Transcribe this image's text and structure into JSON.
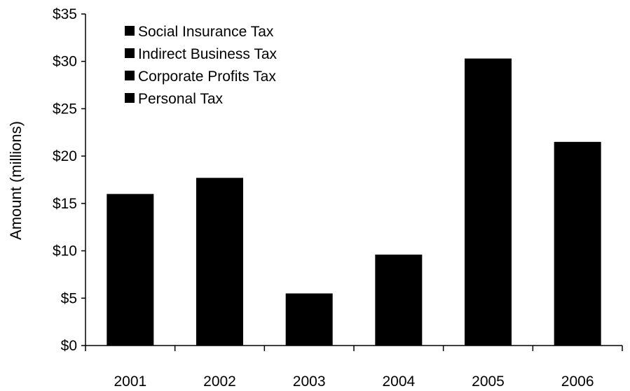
{
  "chart_data": {
    "type": "bar",
    "stacked": true,
    "categories": [
      "2001",
      "2002",
      "2003",
      "2004",
      "2005",
      "2006"
    ],
    "series": [
      {
        "name": "Social Insurance Tax",
        "color": "#000000"
      },
      {
        "name": "Indirect Business Tax",
        "color": "#000000"
      },
      {
        "name": "Corporate Profits Tax",
        "color": "#000000"
      },
      {
        "name": "Personal Tax",
        "color": "#000000"
      }
    ],
    "totals": [
      16.0,
      17.7,
      5.5,
      9.6,
      30.3,
      21.5
    ],
    "ylabel": "Amount (millions)",
    "ylim": [
      0,
      35
    ],
    "yticks": [
      0,
      5,
      10,
      15,
      20,
      25,
      30,
      35
    ],
    "ytick_labels": [
      "$0",
      "$5",
      "$10",
      "$15",
      "$20",
      "$25",
      "$30",
      "$35"
    ],
    "legend_position": "top-left",
    "grid": false
  }
}
